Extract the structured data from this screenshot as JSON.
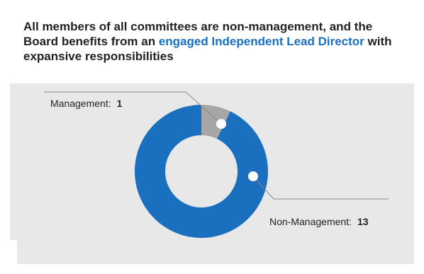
{
  "title": {
    "part1": "All members of all committees are non-management, and the Board benefits from an ",
    "highlight": "engaged Independent Lead Director",
    "part2": " with expansive responsibilities"
  },
  "colors": {
    "management": "#a6a6a6",
    "non_management": "#1a6fbf",
    "highlight": "#1a6fbf",
    "panel": "#e8e8e8"
  },
  "chart_data": {
    "type": "pie",
    "donut": true,
    "categories": [
      "Management",
      "Non-Management"
    ],
    "values": [
      1,
      13
    ],
    "labels": [
      {
        "name": "Management:",
        "value": "1"
      },
      {
        "name": "Non-Management:",
        "value": "13"
      }
    ]
  }
}
